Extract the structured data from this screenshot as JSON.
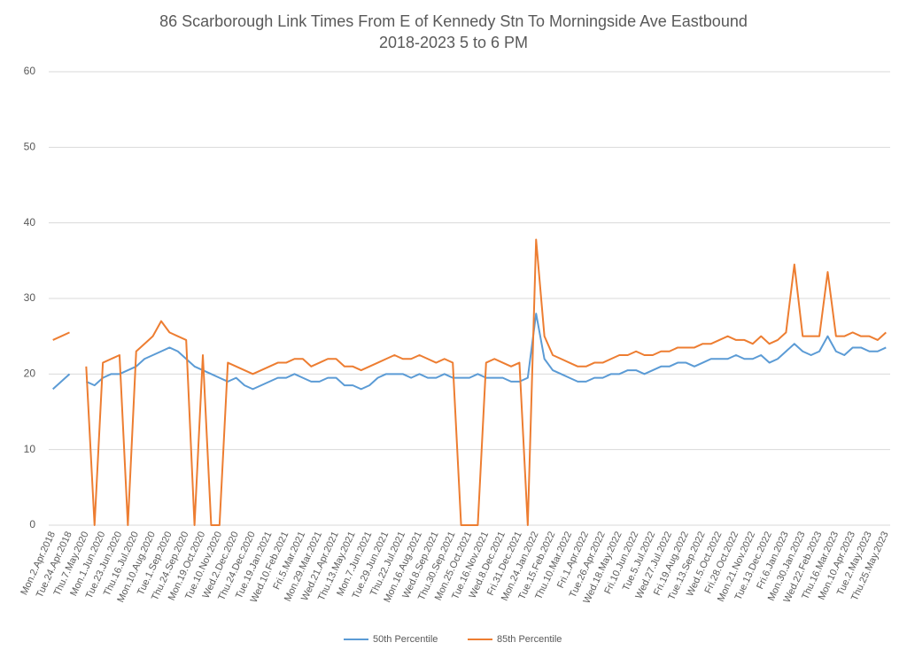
{
  "chart_data": {
    "type": "line",
    "title": "86 Scarborough Link Times From E of Kennedy Stn To Morningside Ave Eastbound",
    "subtitle": "2018-2023 5 to 6 PM",
    "categories": [
      "Mon.2.Apr.2018",
      null,
      "Tue.24.Apr.2018",
      null,
      "Thu.7.May.2020",
      null,
      "Mon.1.Jun.2020",
      null,
      "Tue.23.Jun.2020",
      null,
      "Thu.16.Jul.2020",
      null,
      "Mon.10.Aug.2020",
      null,
      "Tue.1.Sep.2020",
      null,
      "Thu.24.Sep.2020",
      null,
      "Mon.19.Oct.2020",
      null,
      "Tue.10.Nov.2020",
      null,
      "Wed.2.Dec.2020",
      null,
      "Thu.24.Dec.2020",
      null,
      "Tue.19.Jan.2021",
      null,
      "Wed.10.Feb.2021",
      null,
      "Fri.5.Mar.2021",
      null,
      "Mon.29.Mar.2021",
      null,
      "Wed.21.Apr.2021",
      null,
      "Thu.13.May.2021",
      null,
      "Mon.7.Jun.2021",
      null,
      "Tue.29.Jun.2021",
      null,
      "Thu.22.Jul.2021",
      null,
      "Mon.16.Aug.2021",
      null,
      "Wed.8.Sep.2021",
      null,
      "Thu.30.Sep.2021",
      null,
      "Mon.25.Oct.2021",
      null,
      "Tue.16.Nov.2021",
      null,
      "Wed.8.Dec.2021",
      null,
      "Fri.31.Dec.2021",
      null,
      "Mon.24.Jan.2022",
      null,
      "Tue.15.Feb.2022",
      null,
      "Thu.10.Mar.2022",
      null,
      "Fri.1.Apr.2022",
      null,
      "Tue.26.Apr.2022",
      null,
      "Wed.18.May.2022",
      null,
      "Fri.10.Jun.2022",
      null,
      "Tue.5.Jul.2022",
      null,
      "Wed.27.Jul.2022",
      null,
      "Fri.19.Aug.2022",
      null,
      "Tue.13.Sep.2022",
      null,
      "Wed.5.Oct.2022",
      null,
      "Fri.28.Oct.2022",
      null,
      "Mon.21.Nov.2022",
      null,
      "Tue.13.Dec.2022",
      null,
      "Fri.6.Jan.2023",
      null,
      "Mon.30.Jan.2023",
      null,
      "Wed.22.Feb.2023",
      null,
      "Thu.16.Mar.2023",
      null,
      "Mon.10.Apr.2023",
      null,
      "Tue.2.May.2023",
      null,
      "Thu.25.May.2023"
    ],
    "series": [
      {
        "name": "50th Percentile",
        "color": "#5b9bd5",
        "values": [
          18,
          19,
          20,
          null,
          19,
          18.5,
          19.5,
          20,
          20,
          20.5,
          21,
          22,
          22.5,
          23,
          23.5,
          23,
          22,
          21,
          20.5,
          20,
          19.5,
          19,
          19.5,
          18.5,
          18,
          18.5,
          19,
          19.5,
          19.5,
          20,
          19.5,
          19,
          19,
          19.5,
          19.5,
          18.5,
          18.5,
          18,
          18.5,
          19.5,
          20,
          20,
          20,
          19.5,
          20,
          19.5,
          19.5,
          20,
          19.5,
          19.5,
          19.5,
          20,
          19.5,
          19.5,
          19.5,
          19,
          19,
          19.5,
          28,
          22,
          20.5,
          20,
          19.5,
          19,
          19,
          19.5,
          19.5,
          20,
          20,
          20.5,
          20.5,
          20,
          20.5,
          21,
          21,
          21.5,
          21.5,
          21,
          21.5,
          22,
          22,
          22,
          22.5,
          22,
          22,
          22.5,
          21.5,
          22,
          23,
          24,
          23,
          22.5,
          23,
          25,
          23,
          22.5,
          23.5,
          23.5,
          23,
          23,
          23.5
        ]
      },
      {
        "name": "85th Percentile",
        "color": "#ed7d31",
        "values": [
          24.5,
          25,
          25.5,
          null,
          21,
          0,
          21.5,
          22,
          22.5,
          0,
          23,
          24,
          25,
          27,
          25.5,
          25,
          24.5,
          0,
          22.5,
          0,
          0,
          21.5,
          21,
          20.5,
          20,
          20.5,
          21,
          21.5,
          21.5,
          22,
          22,
          21,
          21.5,
          22,
          22,
          21,
          21,
          20.5,
          21,
          21.5,
          22,
          22.5,
          22,
          22,
          22.5,
          22,
          21.5,
          22,
          21.5,
          0,
          0,
          0,
          21.5,
          22,
          21.5,
          21,
          21.5,
          0,
          37.8,
          25,
          22.5,
          22,
          21.5,
          21,
          21,
          21.5,
          21.5,
          22,
          22.5,
          22.5,
          23,
          22.5,
          22.5,
          23,
          23,
          23.5,
          23.5,
          23.5,
          24,
          24,
          24.5,
          25,
          24.5,
          24.5,
          24,
          25,
          24,
          24.5,
          25.5,
          34.5,
          25,
          25,
          25,
          33.5,
          25,
          25,
          25.5,
          25,
          25,
          24.5,
          25.5
        ]
      }
    ],
    "ylim": [
      0,
      60
    ],
    "yticks": [
      0,
      10,
      20,
      30,
      40,
      50,
      60
    ],
    "grid": true,
    "legend": "bottom"
  }
}
